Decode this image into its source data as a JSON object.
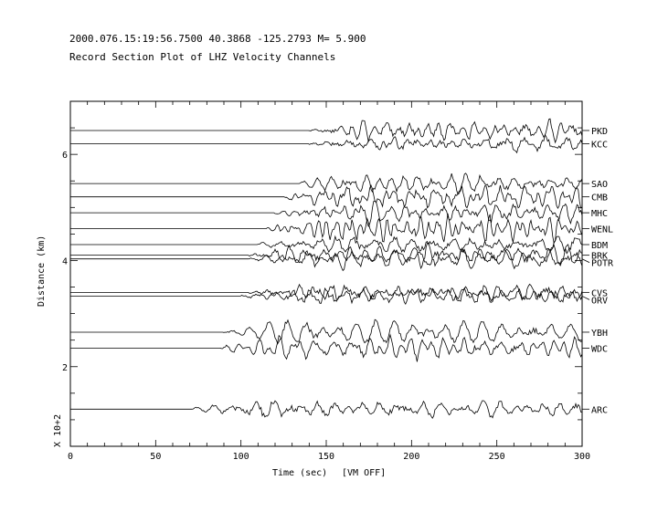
{
  "header": {
    "event_line": "2000.076.15:19:56.7500 40.3868 -125.2793 M= 5.900",
    "title": "Record Section Plot of LHZ Velocity Channels"
  },
  "chart_data": {
    "type": "line",
    "title": "Record Section Plot of LHZ Velocity Channels",
    "xlabel": "Time (sec)",
    "xlabel_suffix": "[VM OFF]",
    "ylabel": "Distance (km)",
    "yscale_label": "X 10+2",
    "xlim": [
      0,
      300
    ],
    "ylim": [
      0.5,
      7.0
    ],
    "xticks": [
      0,
      50,
      100,
      150,
      200,
      250,
      300
    ],
    "xtick_labels": [
      "0",
      "50",
      "100",
      "150",
      "200",
      "250",
      "300"
    ],
    "yticks": [
      2,
      4,
      6
    ],
    "ytick_labels": [
      "2",
      "4",
      "6"
    ],
    "grid": false,
    "series": [
      {
        "name": "PKD",
        "distance": 6.45,
        "onset": 140
      },
      {
        "name": "KCC",
        "distance": 6.2,
        "onset": 140
      },
      {
        "name": "SAO",
        "distance": 5.45,
        "onset": 135
      },
      {
        "name": "CMB",
        "distance": 5.2,
        "onset": 125
      },
      {
        "name": "MHC",
        "distance": 4.9,
        "onset": 120
      },
      {
        "name": "WENL",
        "distance": 4.6,
        "onset": 115
      },
      {
        "name": "BDM",
        "distance": 4.3,
        "onset": 110
      },
      {
        "name": "BRK",
        "distance": 4.1,
        "onset": 105
      },
      {
        "name": "POTR",
        "distance": 4.03,
        "onset": 105
      },
      {
        "name": "CVS",
        "distance": 3.4,
        "onset": 105
      },
      {
        "name": "ORV",
        "distance": 3.33,
        "onset": 100
      },
      {
        "name": "YBH",
        "distance": 2.65,
        "onset": 90
      },
      {
        "name": "WDC",
        "distance": 2.35,
        "onset": 88
      },
      {
        "name": "ARC",
        "distance": 1.2,
        "onset": 72
      }
    ]
  }
}
